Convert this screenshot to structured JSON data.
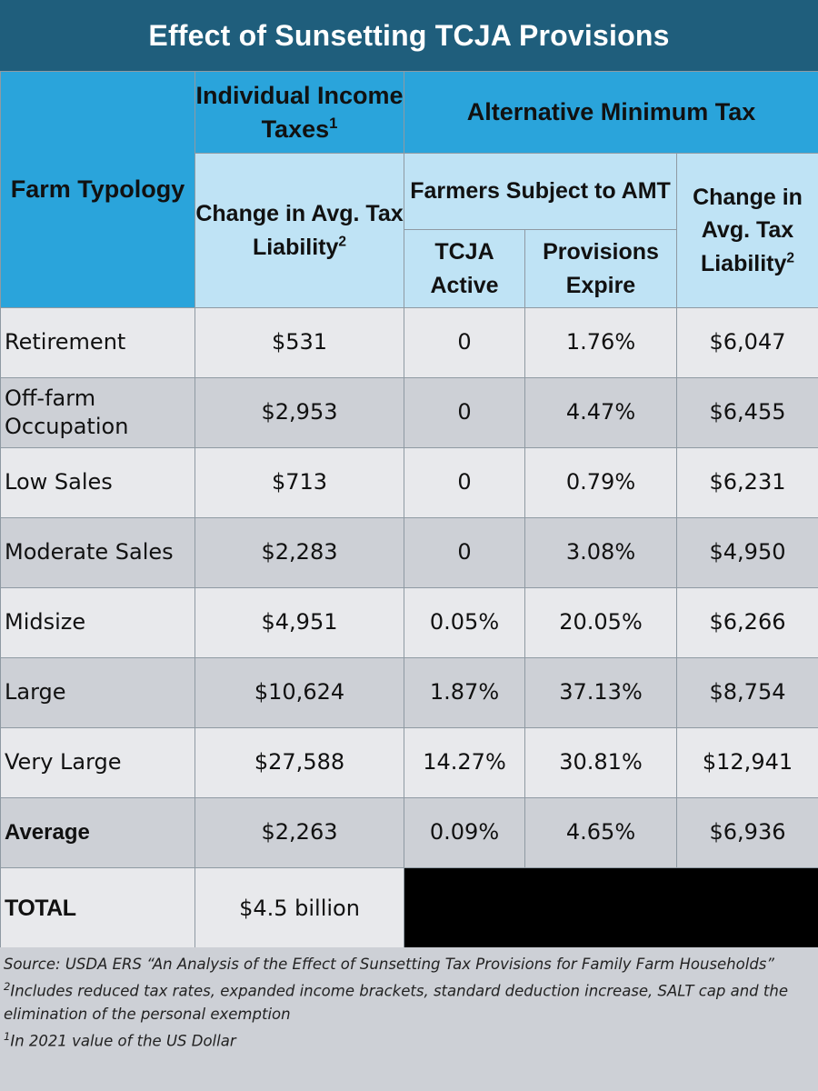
{
  "title": "Effect of Sunsetting TCJA Provisions",
  "headers": {
    "farm_typology": "Farm Typology",
    "individual_income_taxes": "Individual Income Taxes",
    "individual_income_taxes_sup": "1",
    "alternative_minimum_tax": "Alternative Minimum Tax",
    "change_avg_tax_liability": "Change in Avg. Tax Liability",
    "change_avg_tax_liability_sup": "2",
    "farmers_subject_amt": "Farmers Subject to AMT",
    "tcja_active": "TCJA Active",
    "provisions_expire": "Provisions Expire",
    "amt_change_avg_tax_liability": "Change in Avg. Tax Liability",
    "amt_change_avg_tax_liability_sup": "2"
  },
  "rows": [
    {
      "typology": "Retirement",
      "income_change": "$531",
      "tcja_active": "0",
      "provisions_expire": "1.76%",
      "amt_change": "$6,047"
    },
    {
      "typology": "Off-farm Occupation",
      "income_change": "$2,953",
      "tcja_active": "0",
      "provisions_expire": "4.47%",
      "amt_change": "$6,455"
    },
    {
      "typology": "Low Sales",
      "income_change": "$713",
      "tcja_active": "0",
      "provisions_expire": "0.79%",
      "amt_change": "$6,231"
    },
    {
      "typology": "Moderate Sales",
      "income_change": "$2,283",
      "tcja_active": "0",
      "provisions_expire": "3.08%",
      "amt_change": "$4,950"
    },
    {
      "typology": "Midsize",
      "income_change": "$4,951",
      "tcja_active": "0.05%",
      "provisions_expire": "20.05%",
      "amt_change": "$6,266"
    },
    {
      "typology": "Large",
      "income_change": "$10,624",
      "tcja_active": "1.87%",
      "provisions_expire": "37.13%",
      "amt_change": "$8,754"
    },
    {
      "typology": "Very Large",
      "income_change": "$27,588",
      "tcja_active": "14.27%",
      "provisions_expire": "30.81%",
      "amt_change": "$12,941"
    },
    {
      "typology": "Average",
      "income_change": "$2,263",
      "tcja_active": "0.09%",
      "provisions_expire": "4.65%",
      "amt_change": "$6,936"
    }
  ],
  "total": {
    "label": "TOTAL",
    "value": "$4.5 billion"
  },
  "footnotes": {
    "source": "Source: USDA ERS “An Analysis of the Effect of Sunsetting Tax Provisions for Family Farm Households”",
    "note2_sup": "2",
    "note2": "Includes reduced tax rates, expanded income brackets, standard deduction increase, SALT cap and the elimination of the personal exemption",
    "note1_sup": "1",
    "note1": "In 2021 value of the US Dollar"
  },
  "chart_data": {
    "type": "table",
    "title": "Effect of Sunsetting TCJA Provisions",
    "columns": [
      "Farm Typology",
      "Individual Income Taxes: Change in Avg. Tax Liability",
      "AMT: Farmers Subject to AMT - TCJA Active",
      "AMT: Farmers Subject to AMT - Provisions Expire",
      "AMT: Change in Avg. Tax Liability"
    ],
    "rows": [
      [
        "Retirement",
        "$531",
        "0",
        "1.76%",
        "$6,047"
      ],
      [
        "Off-farm Occupation",
        "$2,953",
        "0",
        "4.47%",
        "$6,455"
      ],
      [
        "Low Sales",
        "$713",
        "0",
        "0.79%",
        "$6,231"
      ],
      [
        "Moderate Sales",
        "$2,283",
        "0",
        "3.08%",
        "$4,950"
      ],
      [
        "Midsize",
        "$4,951",
        "0.05%",
        "20.05%",
        "$6,266"
      ],
      [
        "Large",
        "$10,624",
        "1.87%",
        "37.13%",
        "$8,754"
      ],
      [
        "Very Large",
        "$27,588",
        "14.27%",
        "30.81%",
        "$12,941"
      ],
      [
        "Average",
        "$2,263",
        "0.09%",
        "4.65%",
        "$6,936"
      ],
      [
        "TOTAL",
        "$4.5 billion",
        "",
        "",
        ""
      ]
    ]
  }
}
